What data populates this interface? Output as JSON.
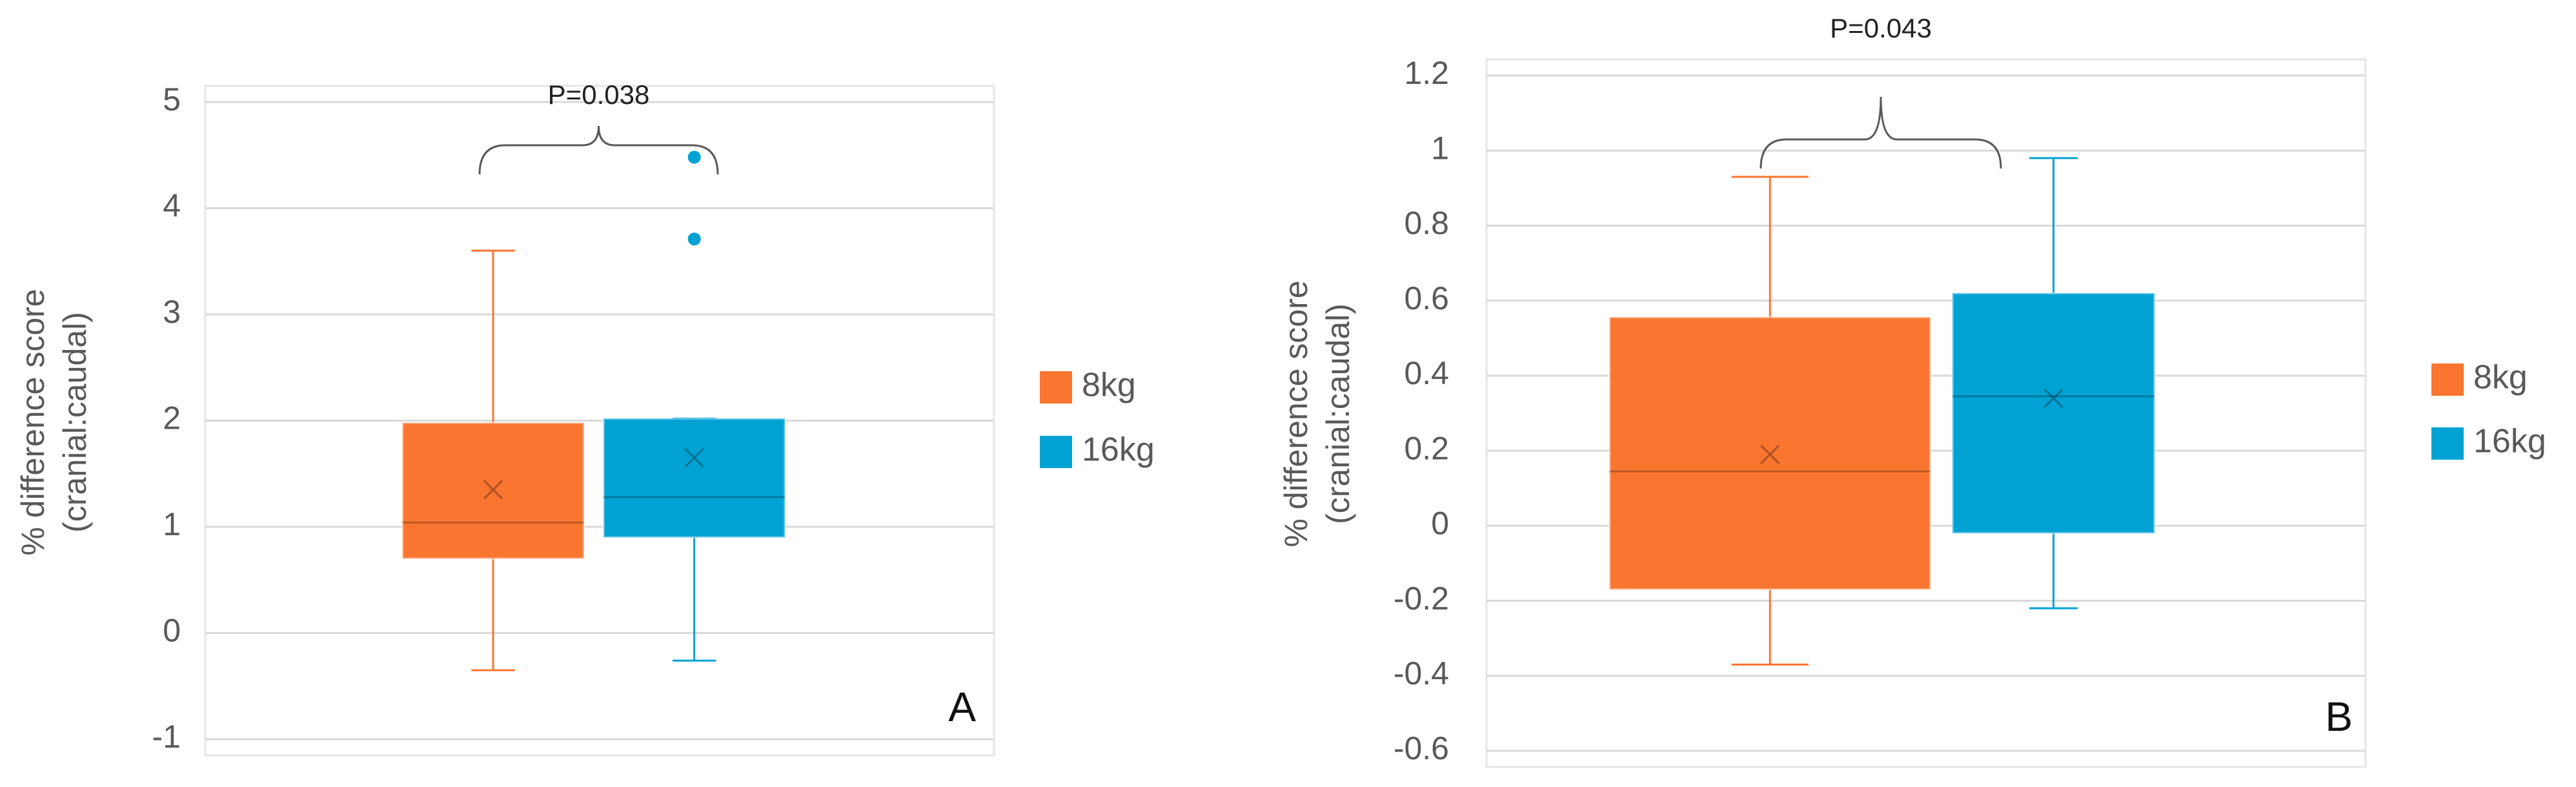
{
  "chart_data": [
    {
      "type": "box",
      "annotation": "P=0.038",
      "panel_label": "A",
      "ylabel": [
        "% difference score",
        "(cranial:caudal)"
      ],
      "ylim": [
        -1,
        5
      ],
      "yticks": [
        -1,
        0,
        1,
        2,
        3,
        4,
        5
      ],
      "grid": true,
      "legend": "right",
      "series": [
        {
          "name": "8kg",
          "color": "#f97530",
          "min": -0.35,
          "q1": 0.7,
          "median": 1.04,
          "q3": 1.98,
          "max": 3.6,
          "mean": 1.35,
          "outliers": []
        },
        {
          "name": "16kg",
          "color": "#00a2d4",
          "min": -0.26,
          "q1": 0.9,
          "median": 1.28,
          "q3": 2.02,
          "max": 2.02,
          "mean": 1.65,
          "outliers": [
            4.48,
            3.71
          ]
        }
      ]
    },
    {
      "type": "box",
      "annotation": "P=0.043",
      "panel_label": "B",
      "ylabel": [
        "% difference score",
        "(cranial:caudal)"
      ],
      "ylim": [
        -0.6,
        1.2
      ],
      "yticks": [
        -0.6,
        -0.4,
        -0.2,
        0,
        0.2,
        0.4,
        0.6,
        0.8,
        1,
        1.2
      ],
      "grid": true,
      "legend": "right",
      "series": [
        {
          "name": "8kg",
          "color": "#f97530",
          "min": -0.37,
          "q1": -0.17,
          "median": 0.145,
          "q3": 0.556,
          "max": 0.93,
          "mean": 0.19,
          "outliers": []
        },
        {
          "name": "16kg",
          "color": "#00a2d4",
          "min": -0.22,
          "q1": -0.02,
          "median": 0.345,
          "q3": 0.62,
          "max": 0.98,
          "mean": 0.34,
          "outliers": []
        }
      ]
    }
  ]
}
